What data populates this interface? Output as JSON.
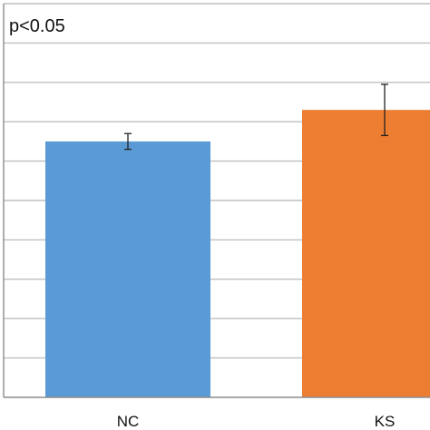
{
  "annotation": "p<0.05",
  "colors": {
    "background": "#ffffff",
    "gridline": "#bfbfbf",
    "axis": "#8c8c8c",
    "text": "#111111",
    "error_bar": "#222222"
  },
  "chart_data": {
    "type": "bar",
    "categories": [
      "NC",
      "KS"
    ],
    "series": [
      {
        "values": [
          6.5,
          7.3
        ],
        "errors": [
          0.2,
          0.65
        ],
        "colors": [
          "#5b9bd5",
          "#ed7d31"
        ]
      }
    ],
    "ylim": [
      0,
      10
    ],
    "y_gridlines": [
      1,
      2,
      3,
      4,
      5,
      6,
      7,
      8,
      9,
      10
    ],
    "grid": true,
    "legend": "none",
    "title": "",
    "xlabel": "",
    "ylabel": ""
  }
}
